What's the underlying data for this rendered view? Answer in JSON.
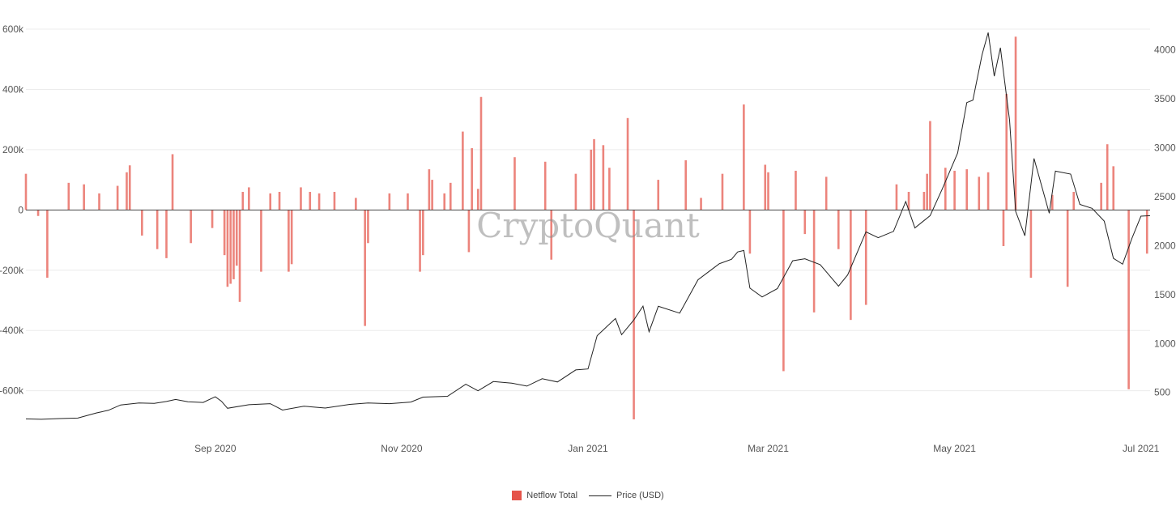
{
  "chart_data": {
    "type": "bar+line",
    "watermark": "CryptoQuant",
    "colors": {
      "netflow": "#e5544a",
      "price": "#222222"
    },
    "y_left": {
      "ticks": [
        600000,
        400000,
        200000,
        0,
        -200000,
        -400000,
        -600000
      ],
      "tick_labels": [
        "600k",
        "400k",
        "200k",
        "0",
        "-200k",
        "-400k",
        "-600k"
      ],
      "range": [
        -695000,
        600000
      ]
    },
    "y_right": {
      "ticks": [
        4000,
        3500,
        3000,
        2500,
        2000,
        1500,
        1000,
        500
      ],
      "tick_labels": [
        "4000",
        "3500",
        "3000",
        "2500",
        "2000",
        "1500",
        "1000",
        "500"
      ],
      "range": [
        225,
        4210
      ]
    },
    "x_ticks": [
      {
        "date": "2020-09-01",
        "label": "Sep 2020"
      },
      {
        "date": "2020-11-01",
        "label": "Nov 2020"
      },
      {
        "date": "2021-01-01",
        "label": "Jan 2021"
      },
      {
        "date": "2021-03-01",
        "label": "Mar 2021"
      },
      {
        "date": "2021-05-01",
        "label": "May 2021"
      },
      {
        "date": "2021-07-01",
        "label": "Jul 2021"
      }
    ],
    "x_range": [
      "2020-07-01",
      "2021-07-04"
    ],
    "series": [
      {
        "name": "Netflow Total",
        "kind": "bar",
        "values": [
          [
            "2020-07-01",
            120000
          ],
          [
            "2020-07-05",
            -20000
          ],
          [
            "2020-07-08",
            -225000
          ],
          [
            "2020-07-15",
            90000
          ],
          [
            "2020-07-20",
            85000
          ],
          [
            "2020-07-25",
            55000
          ],
          [
            "2020-07-31",
            80000
          ],
          [
            "2020-08-03",
            125000
          ],
          [
            "2020-08-04",
            148000
          ],
          [
            "2020-08-08",
            -85000
          ],
          [
            "2020-08-13",
            -130000
          ],
          [
            "2020-08-16",
            -160000
          ],
          [
            "2020-08-18",
            185000
          ],
          [
            "2020-08-24",
            -110000
          ],
          [
            "2020-08-31",
            -60000
          ],
          [
            "2020-09-04",
            -150000
          ],
          [
            "2020-09-05",
            -255000
          ],
          [
            "2020-09-06",
            -245000
          ],
          [
            "2020-09-07",
            -230000
          ],
          [
            "2020-09-08",
            -185000
          ],
          [
            "2020-09-09",
            -305000
          ],
          [
            "2020-09-10",
            60000
          ],
          [
            "2020-09-12",
            75000
          ],
          [
            "2020-09-16",
            -205000
          ],
          [
            "2020-09-19",
            55000
          ],
          [
            "2020-09-22",
            60000
          ],
          [
            "2020-09-25",
            -205000
          ],
          [
            "2020-09-26",
            -180000
          ],
          [
            "2020-09-29",
            75000
          ],
          [
            "2020-10-02",
            60000
          ],
          [
            "2020-10-05",
            55000
          ],
          [
            "2020-10-10",
            60000
          ],
          [
            "2020-10-17",
            40000
          ],
          [
            "2020-10-20",
            -385000
          ],
          [
            "2020-10-21",
            -110000
          ],
          [
            "2020-10-28",
            55000
          ],
          [
            "2020-11-03",
            55000
          ],
          [
            "2020-11-07",
            -205000
          ],
          [
            "2020-11-08",
            -150000
          ],
          [
            "2020-11-10",
            135000
          ],
          [
            "2020-11-11",
            100000
          ],
          [
            "2020-11-15",
            55000
          ],
          [
            "2020-11-17",
            90000
          ],
          [
            "2020-11-21",
            260000
          ],
          [
            "2020-11-23",
            -140000
          ],
          [
            "2020-11-24",
            205000
          ],
          [
            "2020-11-26",
            70000
          ],
          [
            "2020-11-27",
            375000
          ],
          [
            "2020-12-08",
            175000
          ],
          [
            "2020-12-18",
            160000
          ],
          [
            "2020-12-20",
            -165000
          ],
          [
            "2020-12-28",
            120000
          ],
          [
            "2021-01-02",
            200000
          ],
          [
            "2021-01-03",
            235000
          ],
          [
            "2021-01-06",
            215000
          ],
          [
            "2021-01-08",
            140000
          ],
          [
            "2021-01-14",
            305000
          ],
          [
            "2021-01-16",
            -695000
          ],
          [
            "2021-01-24",
            100000
          ],
          [
            "2021-02-02",
            165000
          ],
          [
            "2021-02-07",
            40000
          ],
          [
            "2021-02-14",
            120000
          ],
          [
            "2021-02-21",
            350000
          ],
          [
            "2021-02-23",
            -145000
          ],
          [
            "2021-02-28",
            150000
          ],
          [
            "2021-03-01",
            125000
          ],
          [
            "2021-03-06",
            -535000
          ],
          [
            "2021-03-10",
            130000
          ],
          [
            "2021-03-13",
            -80000
          ],
          [
            "2021-03-16",
            -340000
          ],
          [
            "2021-03-20",
            110000
          ],
          [
            "2021-03-24",
            -130000
          ],
          [
            "2021-03-28",
            -365000
          ],
          [
            "2021-04-02",
            -315000
          ],
          [
            "2021-04-12",
            85000
          ],
          [
            "2021-04-16",
            60000
          ],
          [
            "2021-04-21",
            60000
          ],
          [
            "2021-04-22",
            120000
          ],
          [
            "2021-04-23",
            295000
          ],
          [
            "2021-04-28",
            140000
          ],
          [
            "2021-05-01",
            130000
          ],
          [
            "2021-05-05",
            135000
          ],
          [
            "2021-05-09",
            110000
          ],
          [
            "2021-05-12",
            125000
          ],
          [
            "2021-05-17",
            -120000
          ],
          [
            "2021-05-18",
            385000
          ],
          [
            "2021-05-21",
            575000
          ],
          [
            "2021-05-26",
            -225000
          ],
          [
            "2021-06-02",
            50000
          ],
          [
            "2021-06-07",
            -255000
          ],
          [
            "2021-06-09",
            60000
          ],
          [
            "2021-06-18",
            90000
          ],
          [
            "2021-06-20",
            218000
          ],
          [
            "2021-06-22",
            145000
          ],
          [
            "2021-06-27",
            -595000
          ],
          [
            "2021-07-03",
            -145000
          ]
        ]
      },
      {
        "name": "Price (USD)",
        "kind": "line",
        "values": [
          [
            "2020-07-01",
            230
          ],
          [
            "2020-07-06",
            226
          ],
          [
            "2020-07-12",
            233
          ],
          [
            "2020-07-18",
            238
          ],
          [
            "2020-07-24",
            290
          ],
          [
            "2020-07-28",
            318
          ],
          [
            "2020-08-01",
            372
          ],
          [
            "2020-08-07",
            392
          ],
          [
            "2020-08-12",
            388
          ],
          [
            "2020-08-16",
            408
          ],
          [
            "2020-08-19",
            428
          ],
          [
            "2020-08-23",
            405
          ],
          [
            "2020-08-28",
            398
          ],
          [
            "2020-09-01",
            456
          ],
          [
            "2020-09-03",
            410
          ],
          [
            "2020-09-05",
            338
          ],
          [
            "2020-09-12",
            375
          ],
          [
            "2020-09-19",
            385
          ],
          [
            "2020-09-23",
            320
          ],
          [
            "2020-09-30",
            360
          ],
          [
            "2020-10-07",
            341
          ],
          [
            "2020-10-15",
            378
          ],
          [
            "2020-10-21",
            392
          ],
          [
            "2020-10-28",
            385
          ],
          [
            "2020-11-04",
            402
          ],
          [
            "2020-11-08",
            452
          ],
          [
            "2020-11-16",
            461
          ],
          [
            "2020-11-22",
            584
          ],
          [
            "2020-11-26",
            517
          ],
          [
            "2020-12-01",
            611
          ],
          [
            "2020-12-07",
            595
          ],
          [
            "2020-12-12",
            565
          ],
          [
            "2020-12-17",
            640
          ],
          [
            "2020-12-22",
            607
          ],
          [
            "2020-12-28",
            730
          ],
          [
            "2021-01-01",
            740
          ],
          [
            "2021-01-04",
            1080
          ],
          [
            "2021-01-10",
            1255
          ],
          [
            "2021-01-12",
            1090
          ],
          [
            "2021-01-16",
            1240
          ],
          [
            "2021-01-19",
            1382
          ],
          [
            "2021-01-21",
            1120
          ],
          [
            "2021-01-24",
            1380
          ],
          [
            "2021-01-31",
            1310
          ],
          [
            "2021-02-06",
            1650
          ],
          [
            "2021-02-10",
            1745
          ],
          [
            "2021-02-13",
            1815
          ],
          [
            "2021-02-17",
            1860
          ],
          [
            "2021-02-19",
            1935
          ],
          [
            "2021-02-21",
            1950
          ],
          [
            "2021-02-23",
            1565
          ],
          [
            "2021-02-27",
            1475
          ],
          [
            "2021-03-04",
            1560
          ],
          [
            "2021-03-09",
            1845
          ],
          [
            "2021-03-13",
            1865
          ],
          [
            "2021-03-18",
            1805
          ],
          [
            "2021-03-24",
            1585
          ],
          [
            "2021-03-27",
            1700
          ],
          [
            "2021-04-02",
            2140
          ],
          [
            "2021-04-06",
            2080
          ],
          [
            "2021-04-11",
            2145
          ],
          [
            "2021-04-15",
            2450
          ],
          [
            "2021-04-18",
            2180
          ],
          [
            "2021-04-23",
            2305
          ],
          [
            "2021-04-27",
            2580
          ],
          [
            "2021-05-02",
            2945
          ],
          [
            "2021-05-05",
            3460
          ],
          [
            "2021-05-07",
            3485
          ],
          [
            "2021-05-10",
            3950
          ],
          [
            "2021-05-12",
            4175
          ],
          [
            "2021-05-14",
            3730
          ],
          [
            "2021-05-16",
            4020
          ],
          [
            "2021-05-19",
            3280
          ],
          [
            "2021-05-21",
            2350
          ],
          [
            "2021-05-24",
            2100
          ],
          [
            "2021-05-27",
            2890
          ],
          [
            "2021-06-01",
            2330
          ],
          [
            "2021-06-03",
            2760
          ],
          [
            "2021-06-08",
            2730
          ],
          [
            "2021-06-11",
            2420
          ],
          [
            "2021-06-15",
            2380
          ],
          [
            "2021-06-19",
            2250
          ],
          [
            "2021-06-22",
            1870
          ],
          [
            "2021-06-25",
            1810
          ],
          [
            "2021-06-28",
            2070
          ],
          [
            "2021-07-01",
            2300
          ],
          [
            "2021-07-04",
            2305
          ]
        ]
      }
    ]
  },
  "legend": {
    "netflow_label": "Netflow Total",
    "price_label": "Price (USD)"
  }
}
